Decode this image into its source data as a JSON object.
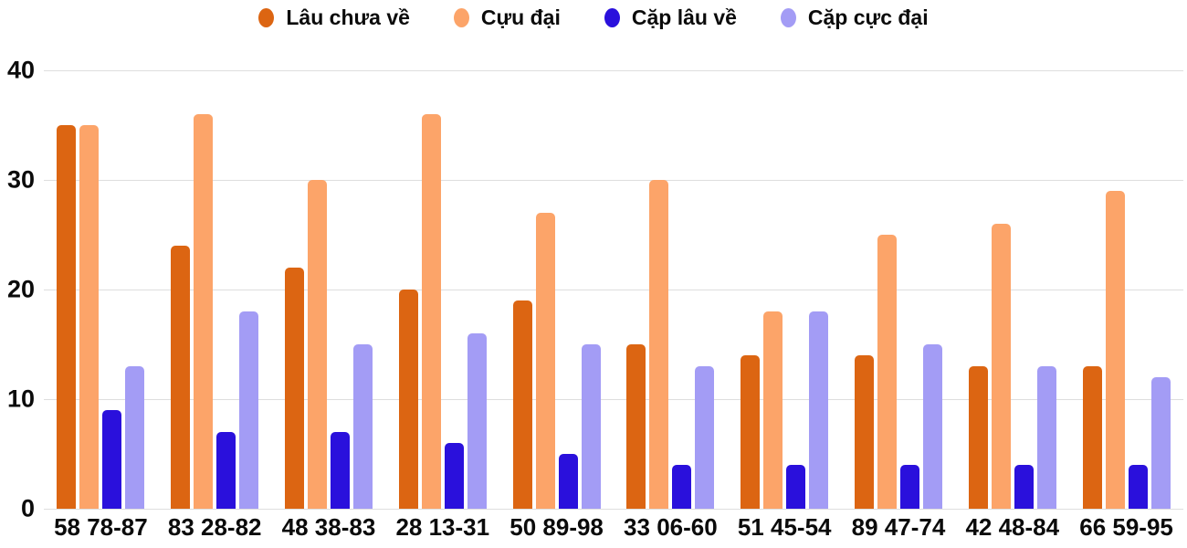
{
  "y_axis": {
    "ticks": [
      "40",
      "30",
      "20",
      "10",
      "0"
    ]
  },
  "chart_data": {
    "type": "bar",
    "title": "",
    "categories": [
      "58 78-87",
      "83 28-82",
      "48 38-83",
      "28 13-31",
      "50 89-98",
      "33 06-60",
      "51 45-54",
      "89 47-74",
      "42 48-84",
      "66 59-95"
    ],
    "series": [
      {
        "name": "Lâu chưa về",
        "color": "#DC6512",
        "values": [
          35,
          24,
          22,
          20,
          19,
          15,
          14,
          14,
          13,
          13
        ]
      },
      {
        "name": "Cựu đại",
        "color": "#FCA469",
        "values": [
          35,
          36,
          30,
          36,
          27,
          30,
          18,
          25,
          26,
          29
        ]
      },
      {
        "name": "Cặp lâu về",
        "color": "#2A10DC",
        "values": [
          9,
          7,
          7,
          6,
          5,
          4,
          4,
          4,
          4,
          4
        ]
      },
      {
        "name": "Cặp cực đại",
        "color": "#A39CF5",
        "values": [
          13,
          18,
          15,
          16,
          15,
          13,
          18,
          15,
          13,
          12
        ]
      }
    ],
    "ylim": [
      0,
      40
    ],
    "y_ticks": [
      0,
      10,
      20,
      30,
      40
    ],
    "grid": true,
    "legend_position": "top"
  },
  "styles": {
    "gridline_color": "#DEDEDE",
    "text_color": "#0B0B0B",
    "background": "#FFFFFF"
  }
}
